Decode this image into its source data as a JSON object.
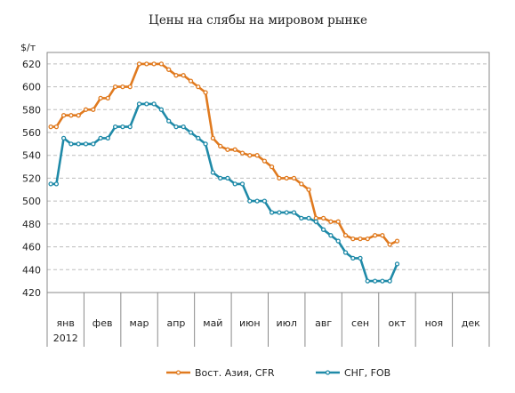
{
  "chart_data": {
    "type": "line",
    "title": "Цены на слябы на мировом рынке",
    "ylabel": "$/т",
    "ylim": [
      420,
      630
    ],
    "yticks": [
      420,
      440,
      460,
      480,
      500,
      520,
      540,
      560,
      580,
      600,
      620
    ],
    "grid": true,
    "legend_position": "bottom",
    "months": [
      "янв",
      "фев",
      "мар",
      "апр",
      "май",
      "июн",
      "июл",
      "авг",
      "сен",
      "окт",
      "ноя",
      "дек"
    ],
    "year_label": "2012",
    "series": [
      {
        "name": "Вост. Азия, CFR",
        "color": "#e07a1f",
        "points": [
          [
            0.1,
            565
          ],
          [
            0.25,
            565
          ],
          [
            0.45,
            575
          ],
          [
            0.65,
            575
          ],
          [
            0.85,
            575
          ],
          [
            1.05,
            580
          ],
          [
            1.25,
            580
          ],
          [
            1.45,
            590
          ],
          [
            1.65,
            590
          ],
          [
            1.85,
            600
          ],
          [
            2.05,
            600
          ],
          [
            2.25,
            600
          ],
          [
            2.5,
            620
          ],
          [
            2.7,
            620
          ],
          [
            2.9,
            620
          ],
          [
            3.1,
            620
          ],
          [
            3.3,
            615
          ],
          [
            3.5,
            610
          ],
          [
            3.7,
            610
          ],
          [
            3.9,
            605
          ],
          [
            4.1,
            600
          ],
          [
            4.3,
            595
          ],
          [
            4.5,
            555
          ],
          [
            4.7,
            548
          ],
          [
            4.9,
            545
          ],
          [
            5.1,
            545
          ],
          [
            5.3,
            542
          ],
          [
            5.5,
            540
          ],
          [
            5.7,
            540
          ],
          [
            5.9,
            535
          ],
          [
            6.1,
            530
          ],
          [
            6.3,
            520
          ],
          [
            6.5,
            520
          ],
          [
            6.7,
            520
          ],
          [
            6.9,
            515
          ],
          [
            7.1,
            510
          ],
          [
            7.3,
            485
          ],
          [
            7.5,
            485
          ],
          [
            7.7,
            482
          ],
          [
            7.9,
            482
          ],
          [
            8.1,
            470
          ],
          [
            8.3,
            467
          ],
          [
            8.5,
            467
          ],
          [
            8.7,
            467
          ],
          [
            8.9,
            470
          ],
          [
            9.1,
            470
          ],
          [
            9.3,
            462
          ],
          [
            9.5,
            465
          ]
        ]
      },
      {
        "name": "СНГ, FOB",
        "color": "#1f8aa8",
        "points": [
          [
            0.1,
            515
          ],
          [
            0.25,
            515
          ],
          [
            0.45,
            555
          ],
          [
            0.65,
            550
          ],
          [
            0.85,
            550
          ],
          [
            1.05,
            550
          ],
          [
            1.25,
            550
          ],
          [
            1.45,
            555
          ],
          [
            1.65,
            555
          ],
          [
            1.85,
            565
          ],
          [
            2.05,
            565
          ],
          [
            2.25,
            565
          ],
          [
            2.5,
            585
          ],
          [
            2.7,
            585
          ],
          [
            2.9,
            585
          ],
          [
            3.1,
            580
          ],
          [
            3.3,
            570
          ],
          [
            3.5,
            565
          ],
          [
            3.7,
            565
          ],
          [
            3.9,
            560
          ],
          [
            4.1,
            555
          ],
          [
            4.3,
            550
          ],
          [
            4.5,
            525
          ],
          [
            4.7,
            520
          ],
          [
            4.9,
            520
          ],
          [
            5.1,
            515
          ],
          [
            5.3,
            515
          ],
          [
            5.5,
            500
          ],
          [
            5.7,
            500
          ],
          [
            5.9,
            500
          ],
          [
            6.1,
            490
          ],
          [
            6.3,
            490
          ],
          [
            6.5,
            490
          ],
          [
            6.7,
            490
          ],
          [
            6.9,
            485
          ],
          [
            7.1,
            485
          ],
          [
            7.3,
            482
          ],
          [
            7.5,
            475
          ],
          [
            7.7,
            470
          ],
          [
            7.9,
            465
          ],
          [
            8.1,
            455
          ],
          [
            8.3,
            450
          ],
          [
            8.5,
            450
          ],
          [
            8.7,
            430
          ],
          [
            8.9,
            430
          ],
          [
            9.1,
            430
          ],
          [
            9.3,
            430
          ],
          [
            9.5,
            445
          ]
        ]
      }
    ]
  }
}
